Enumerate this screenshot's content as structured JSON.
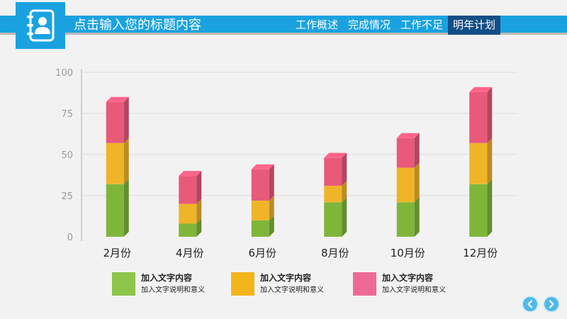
{
  "header": {
    "title": "点击输入您的标题内容",
    "accent": "#1aa2e0",
    "nav": [
      {
        "label": "工作概述",
        "active": false
      },
      {
        "label": "完成情况",
        "active": false
      },
      {
        "label": "工作不足",
        "active": false
      },
      {
        "label": "明年计划",
        "active": true
      }
    ]
  },
  "chart_data": {
    "type": "bar",
    "stacked": true,
    "categories": [
      "2月份",
      "4月份",
      "6月份",
      "8月份",
      "10月份",
      "12月份"
    ],
    "series": [
      {
        "name": "加入文字内容",
        "color": "#7fb63a",
        "values": [
          32,
          8,
          10,
          21,
          21,
          32
        ]
      },
      {
        "name": "加入文字内容",
        "color": "#f0b429",
        "values": [
          25,
          12,
          12,
          10,
          21,
          25
        ]
      },
      {
        "name": "加入文字内容",
        "color": "#e8597a",
        "values": [
          25,
          17,
          19,
          17,
          18,
          31
        ]
      }
    ],
    "yticks": [
      "0",
      "25",
      "50",
      "75",
      "100"
    ],
    "ylim": [
      0,
      100
    ],
    "grid": true
  },
  "legend": [
    {
      "title": "加入文字内容",
      "desc": "加入文字说明和意义",
      "color": "#8cc54a"
    },
    {
      "title": "加入文字内容",
      "desc": "加入文字说明和意义",
      "color": "#f2b51a"
    },
    {
      "title": "加入文字内容",
      "desc": "加入文字说明和意义",
      "color": "#ee6a96"
    }
  ],
  "pager": {
    "prev_icon": "chevron-left-icon",
    "next_icon": "chevron-right-icon"
  }
}
